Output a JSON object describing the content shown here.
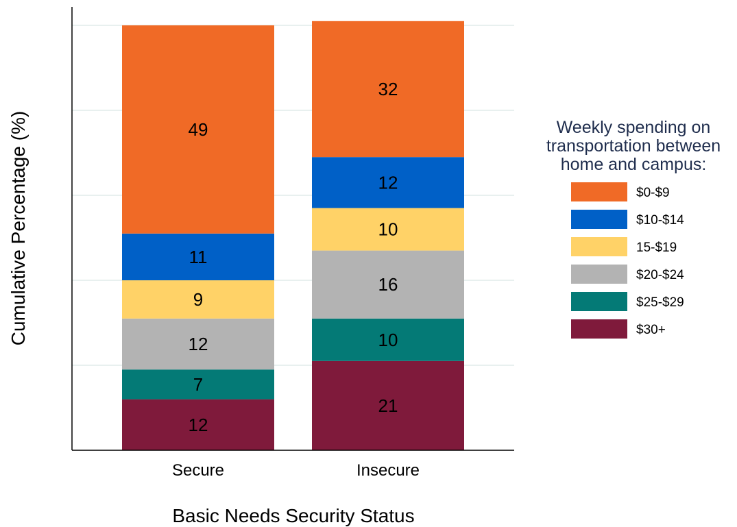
{
  "chart_data": {
    "type": "bar",
    "stacked": true,
    "categories": [
      "Secure",
      "Insecure"
    ],
    "xlabel": "Basic Needs Security Status",
    "ylabel": "Cumulative Percentage (%)",
    "ylim": [
      0,
      100
    ],
    "grid": true,
    "legend": {
      "position": "right",
      "title_lines": [
        "Weekly spending on",
        "transportation between",
        "home and campus:"
      ]
    },
    "series": [
      {
        "name": "$30+",
        "color": "#7f1a3b",
        "values": [
          12,
          21
        ]
      },
      {
        "name": "$25-$29",
        "color": "#047a76",
        "values": [
          7,
          10
        ]
      },
      {
        "name": "$20-$24",
        "color": "#b3b3b3",
        "values": [
          12,
          16
        ]
      },
      {
        "name": "15-$19",
        "color": "#ffd267",
        "values": [
          9,
          10
        ]
      },
      {
        "name": "$10-$14",
        "color": "#0060c7",
        "values": [
          11,
          12
        ]
      },
      {
        "name": "$0-$9",
        "color": "#f06a26",
        "values": [
          49,
          32
        ]
      }
    ]
  }
}
